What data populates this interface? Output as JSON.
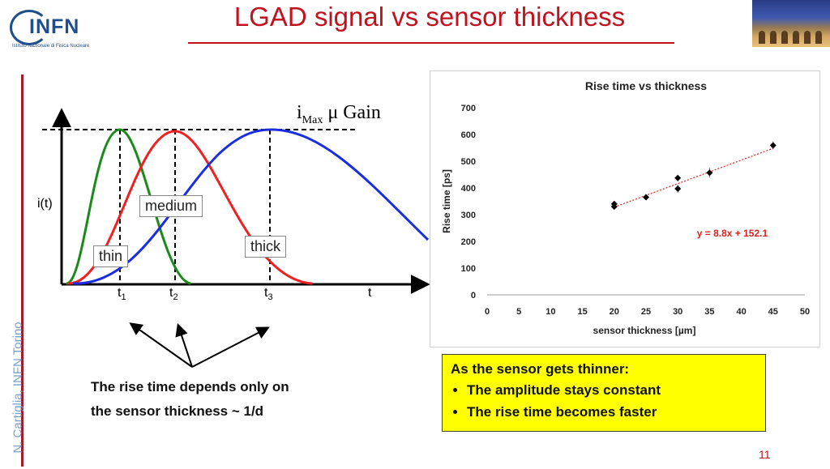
{
  "title": "LGAD signal vs sensor thickness",
  "logo": {
    "text": "INFN",
    "subtitle": "Istituto Nazionale di Fisica Nucleare"
  },
  "side_text": "N. Cartiglia, INFN Torino",
  "sketch": {
    "imax_label": "i",
    "imax_sub": "Max",
    "imax_rest": "μ Gain",
    "y_label": "i(t)",
    "x_label": "t",
    "t_labels": [
      {
        "main": "t",
        "sub": "1"
      },
      {
        "main": "t",
        "sub": "2"
      },
      {
        "main": "t",
        "sub": "3"
      }
    ],
    "curves": [
      {
        "name": "thin",
        "color": "#1a8a1a"
      },
      {
        "name": "medium",
        "color": "#ee2020"
      },
      {
        "name": "thick",
        "color": "#1a2ee0"
      }
    ]
  },
  "caption": {
    "line1": "The rise time depends only on",
    "line2": "the sensor thickness ~ 1/d"
  },
  "chart_data": {
    "type": "scatter",
    "title": "Rise time vs thickness",
    "xlabel": "sensor thickness [µm]",
    "ylabel": "Rise time [ps]",
    "xlim": [
      0,
      50
    ],
    "ylim": [
      0,
      700
    ],
    "xticks": [
      0,
      5,
      10,
      15,
      20,
      25,
      30,
      35,
      40,
      45,
      50
    ],
    "yticks": [
      0,
      100,
      200,
      300,
      400,
      500,
      600,
      700
    ],
    "points": [
      {
        "x": 20,
        "y": 330,
        "err": 8
      },
      {
        "x": 20,
        "y": 340,
        "err": 8
      },
      {
        "x": 25,
        "y": 365,
        "err": 8
      },
      {
        "x": 30,
        "y": 437,
        "err": 12
      },
      {
        "x": 30,
        "y": 397,
        "err": 15
      },
      {
        "x": 35,
        "y": 457,
        "err": 18
      },
      {
        "x": 45,
        "y": 559,
        "err": 15
      }
    ],
    "fit": {
      "slope": 8.8,
      "intercept": 152.1,
      "x_range": [
        20,
        45
      ],
      "label": "y = 8.8x + 152.1"
    },
    "marker_color": "#000000",
    "fit_color": "#e02020"
  },
  "info_box": {
    "heading": "As the sensor gets thinner:",
    "items": [
      "The amplitude stays constant",
      "The rise time becomes faster"
    ]
  },
  "page_number": "11"
}
